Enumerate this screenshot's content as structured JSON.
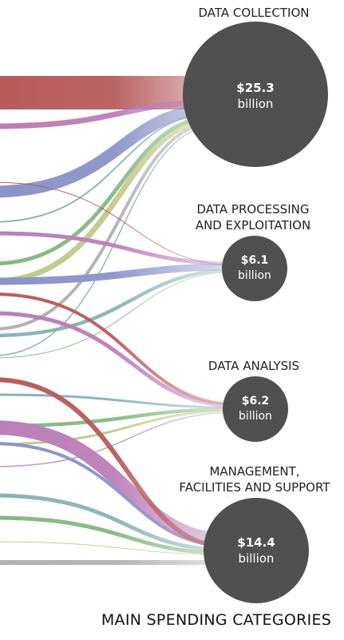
{
  "chart_data": {
    "type": "sankey",
    "title": "MAIN SPENDING CATEGORIES",
    "unit": "billion",
    "categories": [
      {
        "key": "collection",
        "label_lines": [
          "DATA COLLECTION"
        ],
        "amount": "$25.3",
        "value": 25.3
      },
      {
        "key": "processing",
        "label_lines": [
          "DATA PROCESSING",
          "AND EXPLOITATION"
        ],
        "amount": "$6.1",
        "value": 6.1
      },
      {
        "key": "analysis",
        "label_lines": [
          "DATA ANALYSIS"
        ],
        "amount": "$6.2",
        "value": 6.2
      },
      {
        "key": "management",
        "label_lines": [
          "MANAGEMENT,",
          "FACILITIES AND SUPPORT"
        ],
        "amount": "$14.4",
        "value": 14.4
      }
    ],
    "colors": {
      "circle": "#505050",
      "red": "#b85c5c",
      "purple": "#bb7fb8",
      "blue": "#8c93c8",
      "teal": "#8ab3b3",
      "green": "#86b883",
      "olive": "#c2c98c",
      "gray": "#b1b1b1",
      "lavender": "#b79ac2"
    },
    "flows": [
      {
        "to": "collection",
        "color": "red",
        "width": 11.0
      },
      {
        "to": "collection",
        "color": "purple",
        "width": 2.0
      },
      {
        "to": "collection",
        "color": "blue",
        "width": 3.6
      },
      {
        "to": "collection",
        "color": "teal",
        "width": 0.5
      },
      {
        "to": "collection",
        "color": "green",
        "width": 1.2
      },
      {
        "to": "collection",
        "color": "olive",
        "width": 1.8
      },
      {
        "to": "collection",
        "color": "gray",
        "width": 1.0
      },
      {
        "to": "collection",
        "color": "teal",
        "width": 0.4
      },
      {
        "to": "processing",
        "color": "red",
        "width": 0.2
      },
      {
        "to": "processing",
        "color": "purple",
        "width": 1.0
      },
      {
        "to": "processing",
        "color": "blue",
        "width": 2.2
      },
      {
        "to": "processing",
        "color": "teal",
        "width": 1.1
      },
      {
        "to": "processing",
        "color": "green",
        "width": 0.3
      },
      {
        "to": "analysis",
        "color": "red",
        "width": 1.0
      },
      {
        "to": "analysis",
        "color": "purple",
        "width": 1.3
      },
      {
        "to": "analysis",
        "color": "teal",
        "width": 0.7
      },
      {
        "to": "analysis",
        "color": "green",
        "width": 1.1
      },
      {
        "to": "analysis",
        "color": "olive",
        "width": 0.8
      },
      {
        "to": "analysis",
        "color": "lavender",
        "width": 0.4
      },
      {
        "to": "management",
        "color": "purple",
        "width": 5.0
      },
      {
        "to": "management",
        "color": "blue",
        "width": 1.1
      },
      {
        "to": "management",
        "color": "red",
        "width": 1.4
      },
      {
        "to": "management",
        "color": "teal",
        "width": 1.3
      },
      {
        "to": "management",
        "color": "green",
        "width": 1.2
      },
      {
        "to": "management",
        "color": "olive",
        "width": 0.3
      },
      {
        "to": "management",
        "color": "gray",
        "width": 1.6
      }
    ]
  }
}
